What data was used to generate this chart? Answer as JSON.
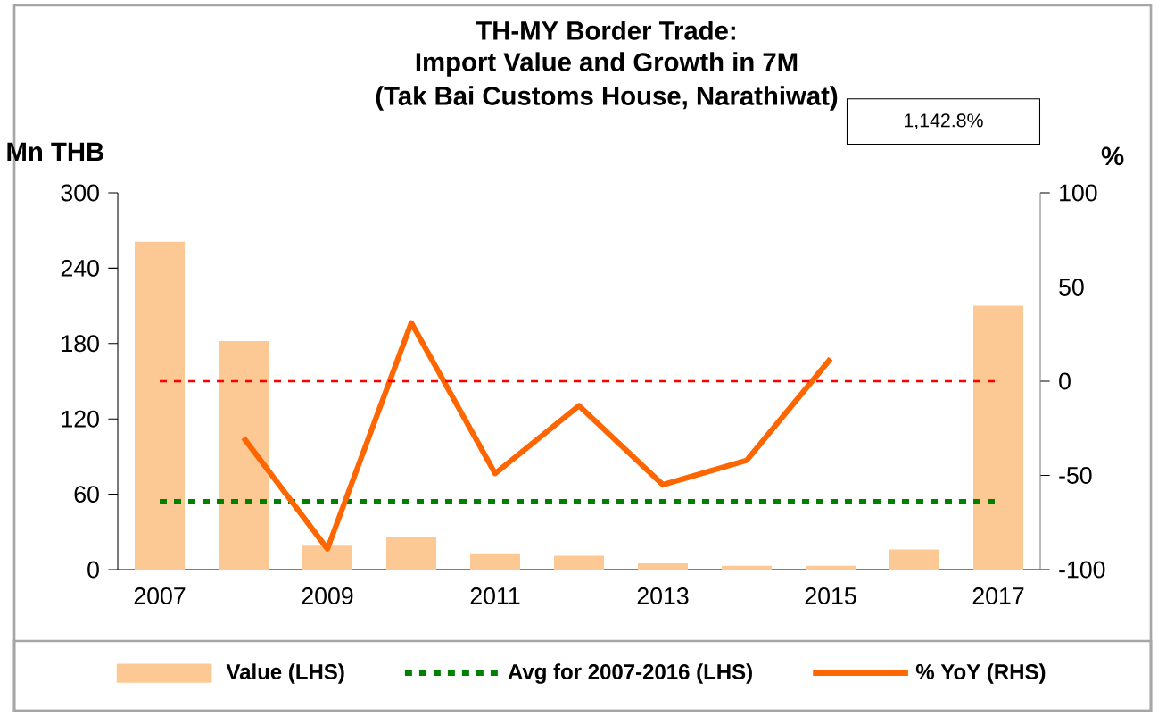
{
  "chart_data": {
    "type": "bar",
    "title": "TH-MY Border Trade:",
    "subtitle": "Import Value and Growth in 7M",
    "annotations": [
      "(Tak Bai Customs House, Narathiwat)",
      "1,142.8%"
    ],
    "ylabel": "Mn THB",
    "y2label": "%",
    "categories": [
      "2007",
      null,
      "2009",
      null,
      "2011",
      null,
      "2013",
      null,
      "2015",
      null,
      "2017"
    ],
    "series": [
      {
        "name": "Value (LHS)",
        "color": "#fcc995",
        "values": [
          261,
          182,
          19,
          26,
          13,
          11,
          5,
          3,
          3,
          16,
          210
        ]
      },
      {
        "name": "% YoY (RHS)",
        "type": "line",
        "axis": "y2",
        "color": "#ff6600",
        "values": [
          null,
          -30,
          -89,
          31,
          -49,
          -13,
          -55,
          -42,
          12,
          null,
          null
        ]
      }
    ],
    "ref_lines": [
      {
        "axis": "y",
        "value": 54,
        "label": "Avg for 2007-2016 (LHS)",
        "color": "#008000",
        "line_style": "dashed"
      },
      {
        "axis": "y2",
        "value": 0,
        "color": "#ff0000",
        "line_style": "dashed"
      }
    ],
    "ylim": [
      0,
      300
    ],
    "yticks": [
      0,
      60,
      120,
      180,
      240,
      300
    ],
    "y2lim": [
      -100,
      100
    ],
    "y2ticks": [
      -100,
      -50,
      0,
      50,
      100
    ],
    "legend": "bottom"
  }
}
